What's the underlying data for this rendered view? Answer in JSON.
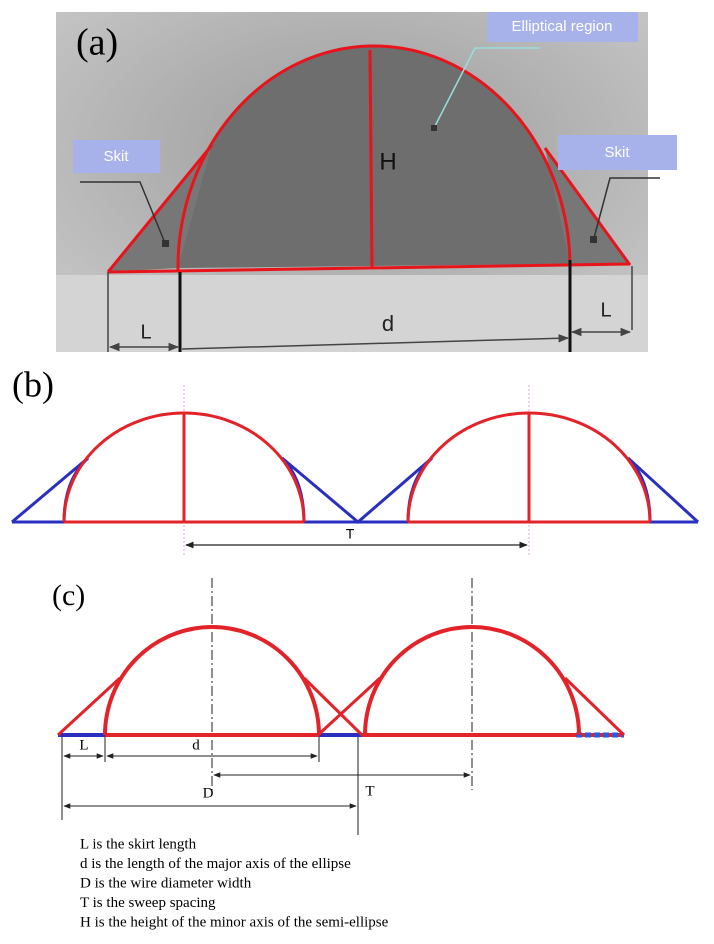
{
  "panel_a": {
    "label": "(a)",
    "region_label": "Elliptical region",
    "skirt_left": "Skit",
    "skirt_right": "Skit",
    "height_label": "H",
    "left_length": "L",
    "width_label": "d",
    "right_length": "L"
  },
  "panel_b": {
    "label": "(b)",
    "spacing_label": "T"
  },
  "panel_c": {
    "label": "(c)",
    "skirt_label": "L",
    "axis_label": "d",
    "spacing_label": "T",
    "width_label": "D"
  },
  "legend": [
    "L is the skirt length",
    "d is the length of the major axis of the ellipse",
    "D is the wire diameter width",
    "T is the sweep spacing",
    "H is the height of the minor axis of the semi-ellipse"
  ]
}
